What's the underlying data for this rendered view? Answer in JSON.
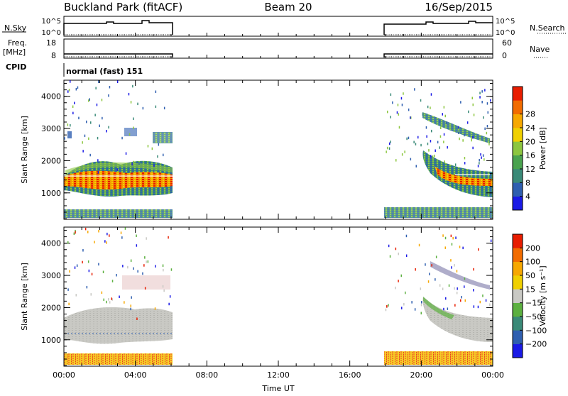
{
  "header": {
    "station": "Buckland Park (fitACF)",
    "beam": "Beam 20",
    "date": "16/Sep/2015"
  },
  "panels": {
    "nsky": {
      "label": "N.Sky",
      "tick_top": "10^5",
      "tick_bottom": "10^0",
      "right_label": "N.Search"
    },
    "freq": {
      "label": "Freq.",
      "unit": "[MHz]",
      "left_ticks": [
        "18",
        "8"
      ],
      "right_ticks": [
        "60",
        "0"
      ],
      "right_label": "Nave"
    },
    "cpid": {
      "label": "CPID",
      "mode": "normal (fast) 151"
    }
  },
  "chart_data": [
    {
      "type": "heatmap",
      "name": "power",
      "ylabel": "Slant Range [km]",
      "ylim": [
        180,
        4500
      ],
      "y_ticks": [
        1000,
        2000,
        3000,
        4000
      ],
      "x_ticks": [
        "00:00",
        "04:00",
        "08:00",
        "12:00",
        "16:00",
        "20:00",
        "00:00"
      ],
      "xlim_hours": [
        0,
        24
      ],
      "data_coverage_hours": [
        [
          0,
          6
        ],
        [
          18,
          24
        ]
      ],
      "colorbar": {
        "label": "Power [dB]",
        "ticks": [
          "4",
          "8",
          "12",
          "16",
          "20",
          "24",
          "28"
        ],
        "colors": [
          "#1a1ae6",
          "#2f5fb0",
          "#3a8a78",
          "#4aa34f",
          "#8dc63f",
          "#f0d000",
          "#f7a800",
          "#f26c00",
          "#e81d00"
        ]
      }
    },
    {
      "type": "heatmap",
      "name": "velocity",
      "ylabel": "Slant Range [km]",
      "ylim": [
        180,
        4500
      ],
      "y_ticks": [
        1000,
        2000,
        3000,
        4000
      ],
      "x_ticks": [
        "00:00",
        "04:00",
        "08:00",
        "12:00",
        "16:00",
        "20:00",
        "00:00"
      ],
      "xlabel": "Time UT",
      "xlim_hours": [
        0,
        24
      ],
      "data_coverage_hours": [
        [
          0,
          6
        ],
        [
          18,
          24
        ]
      ],
      "colorbar": {
        "label": "Velocity [m s⁻¹]",
        "ticks": [
          "200",
          "100",
          "50",
          "15",
          "−15",
          "−50",
          "−100",
          "−200"
        ],
        "colors": [
          "#1a1ae6",
          "#2f5fb0",
          "#3a8a78",
          "#5cb040",
          "#c9c9c4",
          "#f0d000",
          "#f7a800",
          "#f26c00",
          "#e81d00"
        ]
      }
    }
  ]
}
